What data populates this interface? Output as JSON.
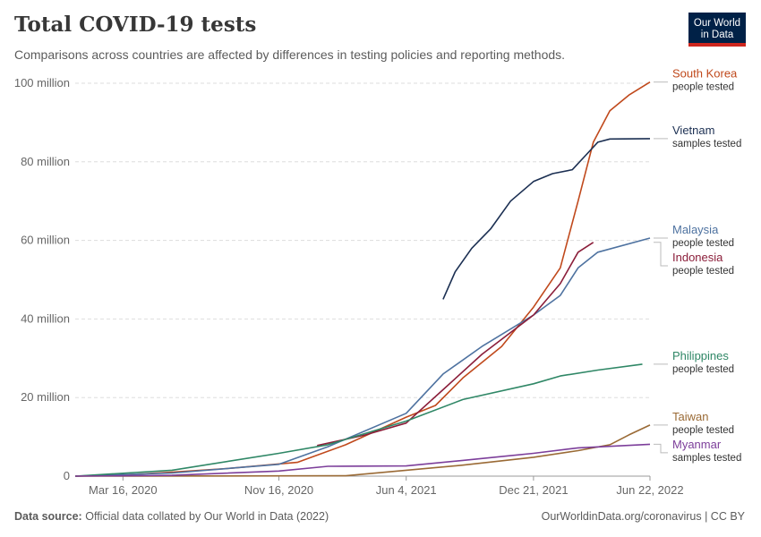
{
  "header": {
    "title": "Total COVID-19 tests",
    "subtitle": "Comparisons across countries are affected by differences in testing policies and reporting methods."
  },
  "logo": {
    "line1": "Our World",
    "line2": "in Data"
  },
  "footer": {
    "source_label": "Data source:",
    "source_text": "Official data collated by Our World in Data (2022)",
    "right_text": "OurWorldinData.org/coronavirus | CC BY"
  },
  "chart_data": {
    "type": "line",
    "title": "Total COVID-19 tests",
    "x_type": "date",
    "xlim": [
      "2020-01-01",
      "2022-06-22"
    ],
    "ylim": [
      0,
      100000000
    ],
    "x_ticks": [
      {
        "date": "2020-03-16",
        "label": "Mar 16, 2020"
      },
      {
        "date": "2020-11-16",
        "label": "Nov 16, 2020"
      },
      {
        "date": "2021-06-04",
        "label": "Jun 4, 2021"
      },
      {
        "date": "2021-12-21",
        "label": "Dec 21, 2021"
      },
      {
        "date": "2022-06-22",
        "label": "Jun 22, 2022"
      }
    ],
    "y_ticks": [
      {
        "value": 0,
        "label": "0"
      },
      {
        "value": 20000000,
        "label": "20 million"
      },
      {
        "value": 40000000,
        "label": "40 million"
      },
      {
        "value": 60000000,
        "label": "60 million"
      },
      {
        "value": 80000000,
        "label": "80 million"
      },
      {
        "value": 100000000,
        "label": "100 million"
      }
    ],
    "grid": "horizontal dashed",
    "legend": "right (line end labels)",
    "series": [
      {
        "name": "South Korea",
        "unit": "people tested",
        "color": "#c0491c",
        "points": [
          [
            "2020-01-01",
            0
          ],
          [
            "2020-03-16",
            300000
          ],
          [
            "2020-06-01",
            1000000
          ],
          [
            "2020-09-01",
            2000000
          ],
          [
            "2020-12-15",
            3500000
          ],
          [
            "2021-03-01",
            8000000
          ],
          [
            "2021-06-04",
            15000000
          ],
          [
            "2021-07-20",
            18000000
          ],
          [
            "2021-09-01",
            25000000
          ],
          [
            "2021-11-01",
            33000000
          ],
          [
            "2021-12-21",
            43000000
          ],
          [
            "2022-02-01",
            53000000
          ],
          [
            "2022-03-01",
            70000000
          ],
          [
            "2022-03-25",
            85000000
          ],
          [
            "2022-04-20",
            93000000
          ],
          [
            "2022-05-20",
            97000000
          ],
          [
            "2022-06-22",
            100300000
          ]
        ]
      },
      {
        "name": "Vietnam",
        "unit": "samples tested",
        "color": "#1b2f52",
        "points": [
          [
            "2021-08-01",
            45000000
          ],
          [
            "2021-08-20",
            52000000
          ],
          [
            "2021-09-15",
            58000000
          ],
          [
            "2021-10-15",
            63000000
          ],
          [
            "2021-11-15",
            70000000
          ],
          [
            "2021-12-21",
            75000000
          ],
          [
            "2022-01-20",
            77000000
          ],
          [
            "2022-02-20",
            78000000
          ],
          [
            "2022-03-15",
            82000000
          ],
          [
            "2022-04-01",
            85000000
          ],
          [
            "2022-04-20",
            85800000
          ],
          [
            "2022-06-22",
            85900000
          ]
        ]
      },
      {
        "name": "Malaysia",
        "unit": "people tested",
        "color": "#4e72a0",
        "points": [
          [
            "2020-01-01",
            0
          ],
          [
            "2020-06-01",
            800000
          ],
          [
            "2020-11-16",
            3000000
          ],
          [
            "2021-02-01",
            7500000
          ],
          [
            "2021-06-04",
            16000000
          ],
          [
            "2021-08-01",
            26000000
          ],
          [
            "2021-10-01",
            33000000
          ],
          [
            "2021-12-21",
            41000000
          ],
          [
            "2022-02-01",
            46000000
          ],
          [
            "2022-03-01",
            53000000
          ],
          [
            "2022-04-01",
            57000000
          ],
          [
            "2022-06-22",
            60600000
          ]
        ]
      },
      {
        "name": "Indonesia",
        "unit": "people tested",
        "color": "#8b1e3a",
        "points": [
          [
            "2021-01-15",
            7800000
          ],
          [
            "2021-04-01",
            10500000
          ],
          [
            "2021-06-04",
            13500000
          ],
          [
            "2021-08-01",
            22000000
          ],
          [
            "2021-10-01",
            31000000
          ],
          [
            "2021-12-21",
            41000000
          ],
          [
            "2022-02-01",
            49000000
          ],
          [
            "2022-03-01",
            57000000
          ],
          [
            "2022-03-25",
            59500000
          ]
        ]
      },
      {
        "name": "Philippines",
        "unit": "people tested",
        "color": "#2f8766",
        "points": [
          [
            "2020-01-01",
            0
          ],
          [
            "2020-06-01",
            1500000
          ],
          [
            "2020-11-16",
            5800000
          ],
          [
            "2021-02-01",
            8000000
          ],
          [
            "2021-06-04",
            14000000
          ],
          [
            "2021-09-01",
            19500000
          ],
          [
            "2021-12-21",
            23500000
          ],
          [
            "2022-02-01",
            25500000
          ],
          [
            "2022-04-01",
            27000000
          ],
          [
            "2022-06-10",
            28500000
          ]
        ]
      },
      {
        "name": "Taiwan",
        "unit": "people tested",
        "color": "#9a6a35",
        "points": [
          [
            "2020-01-01",
            0
          ],
          [
            "2021-03-01",
            100000
          ],
          [
            "2021-06-04",
            1500000
          ],
          [
            "2021-09-01",
            2800000
          ],
          [
            "2021-12-21",
            4800000
          ],
          [
            "2022-03-01",
            6500000
          ],
          [
            "2022-04-20",
            8000000
          ],
          [
            "2022-05-20",
            10500000
          ],
          [
            "2022-06-22",
            13000000
          ]
        ]
      },
      {
        "name": "Myanmar",
        "unit": "samples tested",
        "color": "#7c3e9a",
        "points": [
          [
            "2020-01-01",
            0
          ],
          [
            "2020-06-01",
            200000
          ],
          [
            "2020-11-16",
            1300000
          ],
          [
            "2021-02-01",
            2500000
          ],
          [
            "2021-06-04",
            2600000
          ],
          [
            "2021-09-01",
            4000000
          ],
          [
            "2021-12-21",
            5800000
          ],
          [
            "2022-03-01",
            7200000
          ],
          [
            "2022-06-22",
            8100000
          ]
        ]
      }
    ]
  }
}
